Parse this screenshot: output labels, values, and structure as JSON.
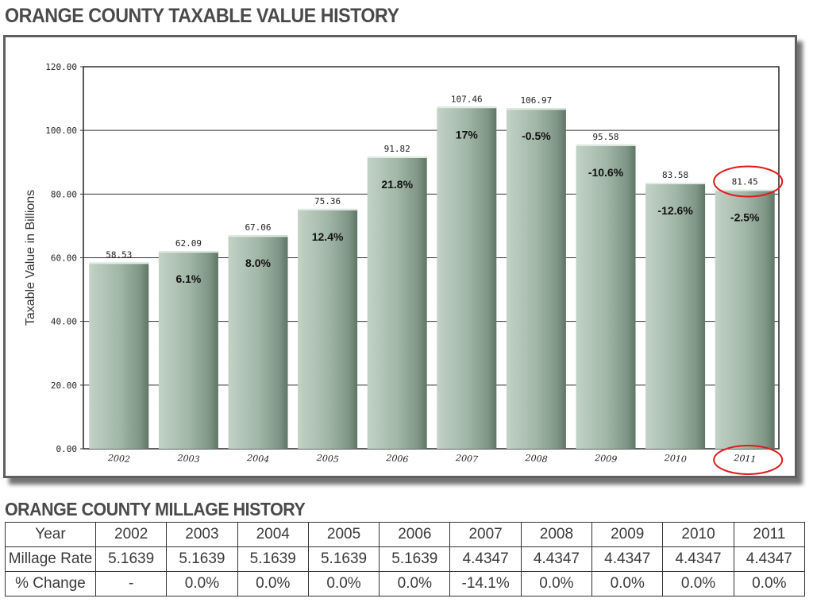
{
  "chart_title": "ORANGE COUNTY TAXABLE VALUE HISTORY",
  "chart_data": {
    "type": "bar",
    "title": "ORANGE COUNTY TAXABLE VALUE HISTORY",
    "xlabel": "",
    "ylabel": "Taxable Value in Billions",
    "ylim": [
      0,
      120
    ],
    "yticks": [
      "0.00",
      "20.00",
      "40.00",
      "60.00",
      "80.00",
      "100.00",
      "120.00"
    ],
    "grid": true,
    "categories": [
      "2002",
      "2003",
      "2004",
      "2005",
      "2006",
      "2007",
      "2008",
      "2009",
      "2010",
      "2011"
    ],
    "values": [
      58.53,
      62.09,
      67.06,
      75.36,
      91.82,
      107.46,
      106.97,
      95.58,
      83.58,
      81.45
    ],
    "value_labels": [
      "58.53",
      "62.09",
      "67.06",
      "75.36",
      "91.82",
      "107.46",
      "106.97",
      "95.58",
      "83.58",
      "81.45"
    ],
    "pct_change_labels": [
      "",
      "6.1%",
      "8.0%",
      "12.4%",
      "21.8%",
      "17%",
      "-0.5%",
      "-10.6%",
      "-12.6%",
      "-2.5%"
    ],
    "bar_color": "#aabfae",
    "highlight_color": "#e01b1b"
  },
  "millage": {
    "title": "ORANGE COUNTY MILLAGE HISTORY",
    "header_label": "Year",
    "years": [
      "2002",
      "2003",
      "2004",
      "2005",
      "2006",
      "2007",
      "2008",
      "2009",
      "2010",
      "2011"
    ],
    "rows": [
      {
        "label": "Millage Rate",
        "values": [
          "5.1639",
          "5.1639",
          "5.1639",
          "5.1639",
          "5.1639",
          "4.4347",
          "4.4347",
          "4.4347",
          "4.4347",
          "4.4347"
        ]
      },
      {
        "label": "% Change",
        "values": [
          "-",
          "0.0%",
          "0.0%",
          "0.0%",
          "0.0%",
          "-14.1%",
          "0.0%",
          "0.0%",
          "0.0%",
          "0.0%"
        ]
      }
    ]
  }
}
